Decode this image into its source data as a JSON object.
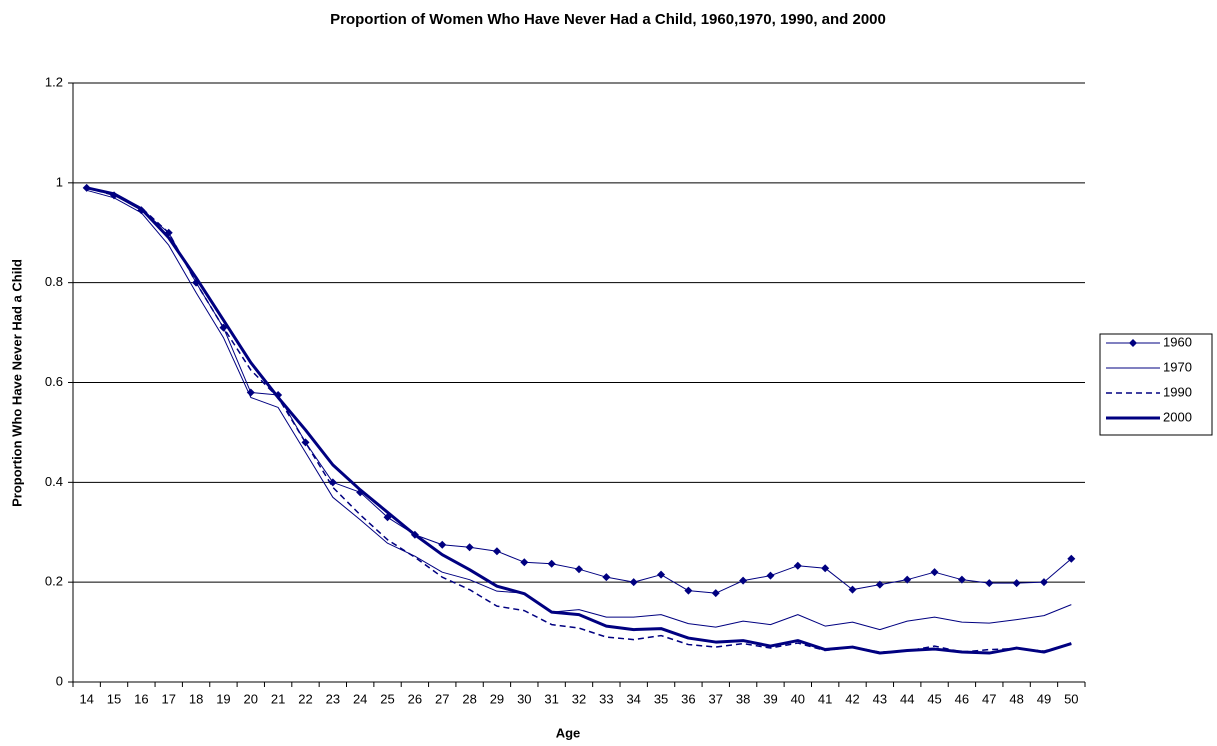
{
  "chart_data": {
    "type": "line",
    "title": "Proportion of Women Who Have Never Had a Child, 1960,1970, 1990, and 2000",
    "x_label": "Age",
    "y_label": "Proportion Who Have Never Had a Child",
    "categories": [
      "14",
      "15",
      "16",
      "17",
      "18",
      "19",
      "20",
      "21",
      "22",
      "23",
      "24",
      "25",
      "26",
      "27",
      "28",
      "29",
      "30",
      "31",
      "32",
      "33",
      "34",
      "35",
      "36",
      "37",
      "38",
      "39",
      "40",
      "41",
      "42",
      "43",
      "44",
      "45",
      "46",
      "47",
      "48",
      "49",
      "50"
    ],
    "ylim": [
      0,
      1.2
    ],
    "yticks": [
      0,
      0.2,
      0.4,
      0.6,
      0.8,
      1,
      1.2
    ],
    "grid": true,
    "legend": "right",
    "series": [
      {
        "name": "1960",
        "color": "#000080",
        "line_width": 1,
        "dash": false,
        "marker": "diamond",
        "values": [
          0.99,
          0.975,
          0.945,
          0.9,
          0.8,
          0.71,
          0.58,
          0.575,
          0.48,
          0.4,
          0.38,
          0.33,
          0.295,
          0.275,
          0.27,
          0.262,
          0.24,
          0.237,
          0.226,
          0.21,
          0.2,
          0.215,
          0.183,
          0.178,
          0.203,
          0.213,
          0.233,
          0.228,
          0.185,
          0.195,
          0.205,
          0.22,
          0.205,
          0.198,
          0.198,
          0.2,
          0.247
        ]
      },
      {
        "name": "1970",
        "color": "#000080",
        "line_width": 1,
        "dash": false,
        "marker": "none",
        "values": [
          0.985,
          0.97,
          0.94,
          0.875,
          0.78,
          0.69,
          0.57,
          0.55,
          0.46,
          0.37,
          0.325,
          0.278,
          0.252,
          0.22,
          0.205,
          0.182,
          0.178,
          0.14,
          0.145,
          0.13,
          0.13,
          0.135,
          0.117,
          0.11,
          0.122,
          0.115,
          0.135,
          0.112,
          0.12,
          0.105,
          0.122,
          0.13,
          0.12,
          0.118,
          0.125,
          0.133,
          0.155
        ]
      },
      {
        "name": "1990",
        "color": "#000080",
        "line_width": 1.5,
        "dash": true,
        "marker": "none",
        "values": [
          0.99,
          0.975,
          0.95,
          0.9,
          0.8,
          0.71,
          0.625,
          0.57,
          0.48,
          0.39,
          0.335,
          0.285,
          0.25,
          0.21,
          0.185,
          0.152,
          0.143,
          0.115,
          0.108,
          0.09,
          0.085,
          0.093,
          0.075,
          0.07,
          0.077,
          0.068,
          0.078,
          0.063,
          0.07,
          0.06,
          0.062,
          0.072,
          0.06,
          0.065,
          0.067,
          0.062,
          0.077
        ]
      },
      {
        "name": "2000",
        "color": "#000080",
        "line_width": 3,
        "dash": false,
        "marker": "none",
        "values": [
          0.99,
          0.978,
          0.948,
          0.89,
          0.81,
          0.725,
          0.64,
          0.57,
          0.505,
          0.435,
          0.385,
          0.34,
          0.295,
          0.255,
          0.225,
          0.192,
          0.177,
          0.14,
          0.135,
          0.112,
          0.105,
          0.107,
          0.088,
          0.08,
          0.083,
          0.072,
          0.083,
          0.065,
          0.07,
          0.058,
          0.063,
          0.066,
          0.06,
          0.058,
          0.068,
          0.06,
          0.077
        ]
      }
    ]
  }
}
